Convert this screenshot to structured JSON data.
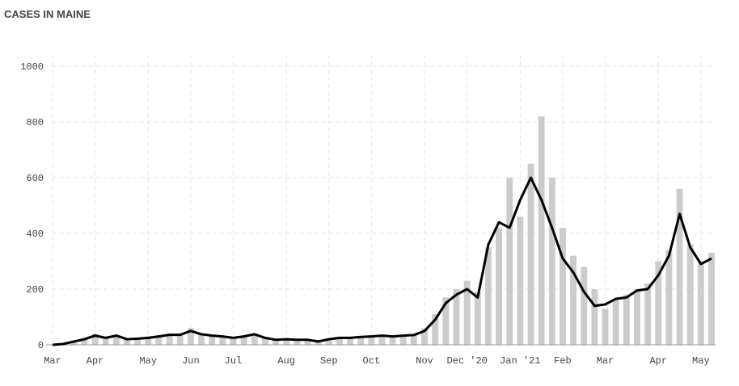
{
  "chart_data": {
    "type": "bar-line",
    "title": "CASES IN MAINE",
    "categories": [
      "Mar",
      null,
      null,
      null,
      "Apr",
      null,
      null,
      null,
      null,
      "May",
      null,
      null,
      null,
      "Jun",
      null,
      null,
      null,
      "Jul",
      null,
      null,
      null,
      null,
      "Aug",
      null,
      null,
      null,
      "Sep",
      null,
      null,
      null,
      "Oct",
      null,
      null,
      null,
      null,
      "Nov",
      null,
      null,
      null,
      "Dec '20",
      null,
      null,
      null,
      null,
      "Jan '21",
      null,
      null,
      null,
      "Feb",
      null,
      null,
      null,
      "Mar",
      null,
      null,
      null,
      null,
      "Apr",
      null,
      null,
      null,
      "May",
      null
    ],
    "series": [
      {
        "color": "#cccccc",
        "values": [
          0,
          4,
          15,
          25,
          40,
          28,
          35,
          22,
          25,
          30,
          35,
          40,
          40,
          60,
          40,
          35,
          32,
          28,
          32,
          40,
          28,
          20,
          22,
          20,
          20,
          15,
          22,
          28,
          28,
          30,
          35,
          35,
          33,
          35,
          38,
          60,
          110,
          170,
          200,
          230,
          190,
          350,
          420,
          600,
          460,
          650,
          820,
          600,
          420,
          320,
          280,
          200,
          130,
          160,
          180,
          200,
          220,
          300,
          340,
          560,
          360,
          300,
          330
        ]
      },
      {
        "color": "#000000",
        "values": [
          0,
          3,
          12,
          20,
          33,
          25,
          33,
          20,
          22,
          25,
          30,
          36,
          36,
          50,
          38,
          33,
          30,
          25,
          30,
          38,
          25,
          18,
          20,
          18,
          18,
          12,
          20,
          25,
          25,
          28,
          30,
          33,
          30,
          33,
          35,
          50,
          90,
          150,
          180,
          200,
          170,
          360,
          440,
          420,
          520,
          600,
          520,
          420,
          310,
          260,
          190,
          140,
          145,
          165,
          170,
          195,
          200,
          250,
          320,
          470,
          350,
          290,
          310
        ]
      }
    ],
    "ylim": [
      0,
      1000
    ],
    "yticks": [
      0,
      200,
      400,
      600,
      800,
      1000
    ],
    "grid": true
  }
}
